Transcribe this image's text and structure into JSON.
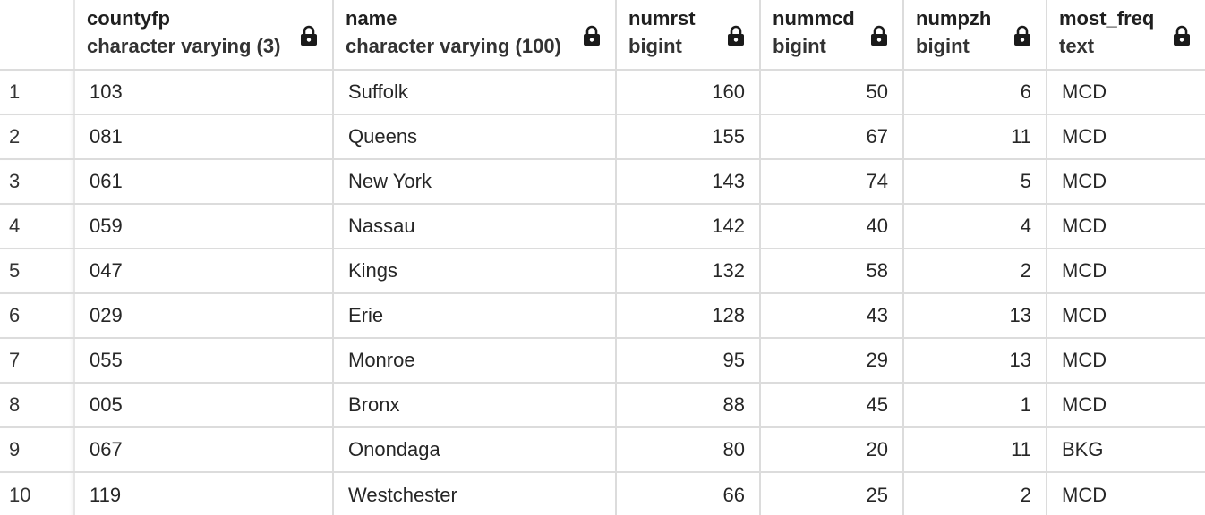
{
  "columns": [
    {
      "name": "countyfp",
      "type": "character varying (3)"
    },
    {
      "name": "name",
      "type": "character varying (100)"
    },
    {
      "name": "numrst",
      "type": "bigint"
    },
    {
      "name": "nummcd",
      "type": "bigint"
    },
    {
      "name": "numpzh",
      "type": "bigint"
    },
    {
      "name": "most_freq",
      "type": "text"
    }
  ],
  "rows": [
    {
      "num": "1",
      "cells": [
        "103",
        "Suffolk",
        "160",
        "50",
        "6",
        "MCD"
      ]
    },
    {
      "num": "2",
      "cells": [
        "081",
        "Queens",
        "155",
        "67",
        "11",
        "MCD"
      ]
    },
    {
      "num": "3",
      "cells": [
        "061",
        "New York",
        "143",
        "74",
        "5",
        "MCD"
      ]
    },
    {
      "num": "4",
      "cells": [
        "059",
        "Nassau",
        "142",
        "40",
        "4",
        "MCD"
      ]
    },
    {
      "num": "5",
      "cells": [
        "047",
        "Kings",
        "132",
        "58",
        "2",
        "MCD"
      ]
    },
    {
      "num": "6",
      "cells": [
        "029",
        "Erie",
        "128",
        "43",
        "13",
        "MCD"
      ]
    },
    {
      "num": "7",
      "cells": [
        "055",
        "Monroe",
        "95",
        "29",
        "13",
        "MCD"
      ]
    },
    {
      "num": "8",
      "cells": [
        "005",
        "Bronx",
        "88",
        "45",
        "1",
        "MCD"
      ]
    },
    {
      "num": "9",
      "cells": [
        "067",
        "Onondaga",
        "80",
        "20",
        "11",
        "BKG"
      ]
    },
    {
      "num": "10",
      "cells": [
        "119",
        "Westchester",
        "66",
        "25",
        "2",
        "MCD"
      ]
    }
  ],
  "icons": {
    "column_lock": "lock-icon"
  }
}
